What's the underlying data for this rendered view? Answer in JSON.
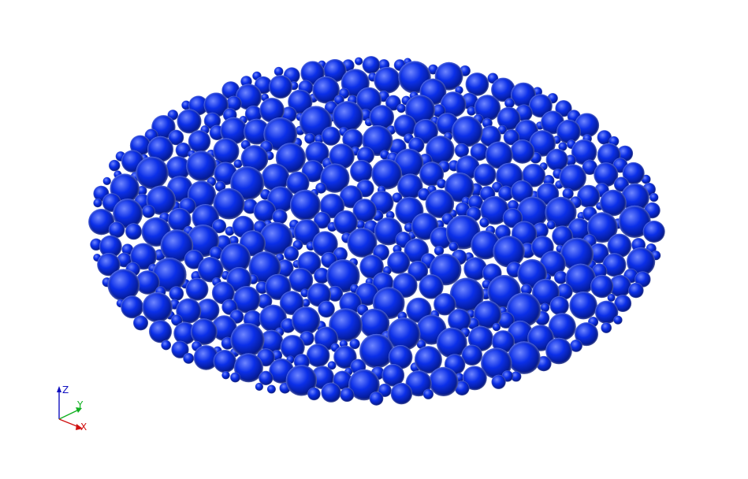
{
  "viewer": {
    "background_color": "#ffffff",
    "particle_color": "#0b2fe8",
    "particle_highlight_color": "#6f86ff",
    "particle_shadow_color": "#03147a"
  },
  "axes": {
    "z": {
      "label": "Z",
      "color": "#1010c0"
    },
    "y": {
      "label": "Y",
      "color": "#10b020"
    },
    "x": {
      "label": "X",
      "color": "#d01010"
    }
  }
}
